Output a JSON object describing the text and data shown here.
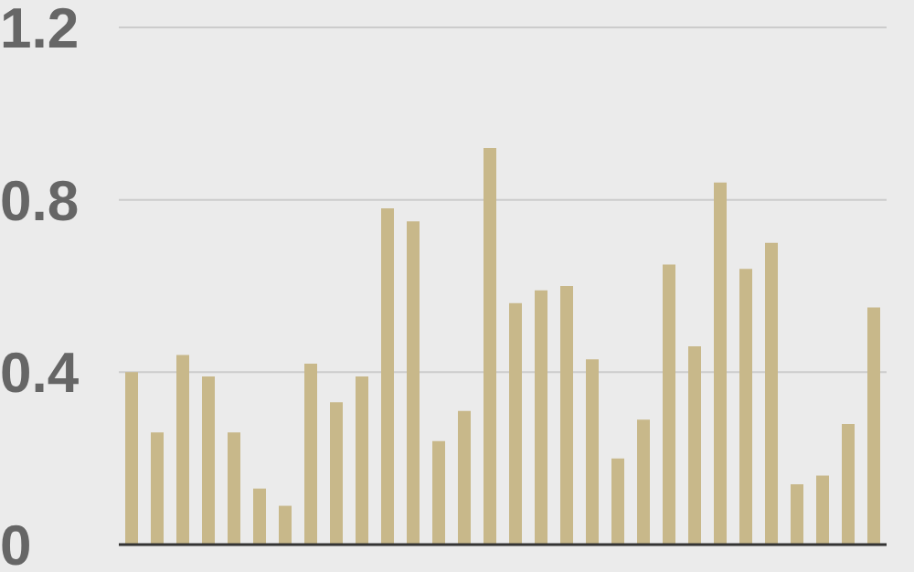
{
  "chart_data": {
    "type": "bar",
    "categories": [
      null,
      null,
      null,
      null,
      null,
      null,
      null,
      null,
      null,
      null,
      null,
      null,
      null,
      null,
      null,
      null,
      null,
      null,
      null,
      null,
      null,
      null,
      null,
      null,
      null,
      null,
      null,
      null,
      null,
      null
    ],
    "values": [
      0.4,
      0.26,
      0.44,
      0.39,
      0.26,
      0.13,
      0.09,
      0.42,
      0.33,
      0.39,
      0.78,
      0.75,
      0.24,
      0.31,
      0.92,
      0.56,
      0.59,
      0.6,
      0.43,
      0.2,
      0.29,
      0.65,
      0.46,
      0.84,
      0.64,
      0.7,
      0.14,
      0.16,
      0.28,
      0.55
    ],
    "color": "#c8b88a",
    "ylim": [
      0,
      1.2
    ],
    "yticks": [
      0,
      0.4,
      0.8,
      1.2
    ],
    "grid": "y",
    "tick_labels": "y"
  }
}
